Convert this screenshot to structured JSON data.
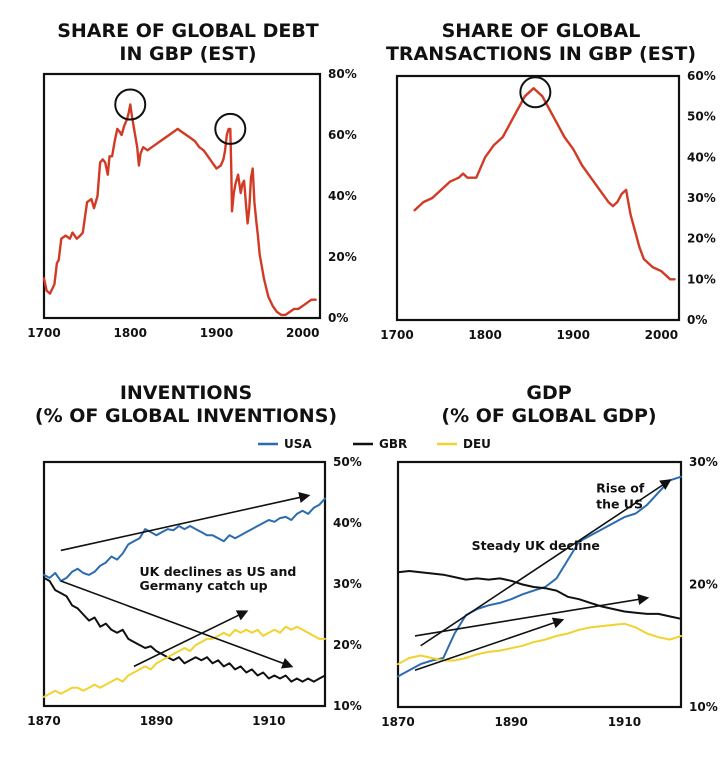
{
  "colors": {
    "red": "#d13b25",
    "usa": "#2b6cb0",
    "gbr": "#111111",
    "deu": "#f2d22e",
    "frame": "#111111"
  },
  "legend": [
    {
      "label": "USA",
      "color": "#2b6cb0"
    },
    {
      "label": "GBR",
      "color": "#111111"
    },
    {
      "label": "DEU",
      "color": "#f2d22e"
    }
  ],
  "chart_data": [
    {
      "id": "debt",
      "type": "line",
      "title": [
        "SHARE OF GLOBAL DEBT",
        "IN GBP (EST)"
      ],
      "xlim": [
        1700,
        2020
      ],
      "ylim": [
        0,
        80
      ],
      "x_ticks": [
        "1700",
        "1800",
        "1900",
        "2000"
      ],
      "x_tick_values": [
        1700,
        1800,
        1900,
        2000
      ],
      "y_ticks": [
        "0%",
        "20%",
        "40%",
        "60%",
        "80%"
      ],
      "y_tick_values": [
        0,
        20,
        40,
        60,
        80
      ],
      "y_axis_side": "right",
      "series": [
        {
          "name": "GBP share of global debt",
          "color": "#d13b25",
          "x": [
            1700,
            1703,
            1707,
            1712,
            1715,
            1717,
            1720,
            1725,
            1730,
            1733,
            1738,
            1742,
            1745,
            1750,
            1755,
            1758,
            1762,
            1765,
            1768,
            1771,
            1774,
            1776,
            1779,
            1782,
            1785,
            1788,
            1790,
            1793,
            1796,
            1798,
            1800,
            1802,
            1805,
            1808,
            1810,
            1812,
            1815,
            1820,
            1825,
            1830,
            1835,
            1840,
            1845,
            1850,
            1855,
            1860,
            1865,
            1870,
            1875,
            1880,
            1885,
            1890,
            1895,
            1900,
            1905,
            1908,
            1910,
            1912,
            1913,
            1914,
            1915,
            1916,
            1917,
            1918,
            1920,
            1922,
            1925,
            1928,
            1930,
            1932,
            1934,
            1936,
            1938,
            1940,
            1942,
            1944,
            1946,
            1948,
            1950,
            1955,
            1960,
            1965,
            1970,
            1975,
            1980,
            1985,
            1990,
            1995,
            2000,
            2005,
            2010,
            2015
          ],
          "y": [
            13,
            9,
            8,
            11,
            18,
            19,
            26,
            27,
            26,
            28,
            26,
            27,
            28,
            38,
            39,
            36,
            40,
            51,
            52,
            51,
            47,
            53,
            53,
            58,
            62,
            61,
            60,
            63,
            65,
            67,
            70,
            66,
            61,
            56,
            50,
            54,
            56,
            55,
            56,
            57,
            58,
            59,
            60,
            61,
            62,
            61,
            60,
            59,
            58,
            56,
            55,
            53,
            51,
            49,
            50,
            52,
            55,
            60,
            61,
            62,
            62,
            62,
            50,
            35,
            41,
            44,
            47,
            41,
            44,
            45,
            38,
            31,
            36,
            46,
            49,
            38,
            32,
            27,
            21,
            13,
            7,
            4,
            2,
            1,
            1,
            2,
            3,
            3,
            4,
            5,
            6,
            6
          ]
        },
        {
          "name": "peak-circle-1",
          "x": [
            1800
          ],
          "y": [
            70
          ]
        },
        {
          "name": "peak-circle-2",
          "x": [
            1916
          ],
          "y": [
            62
          ]
        }
      ]
    },
    {
      "id": "transactions",
      "type": "line",
      "title": [
        "SHARE OF GLOBAL",
        "TRANSACTIONS IN GBP (EST)"
      ],
      "xlim": [
        1700,
        2020
      ],
      "ylim": [
        0,
        60
      ],
      "x_ticks": [
        "1700",
        "1800",
        "1900",
        "2000"
      ],
      "x_tick_values": [
        1700,
        1800,
        1900,
        2000
      ],
      "y_ticks": [
        "0%",
        "10%",
        "20%",
        "30%",
        "40%",
        "50%",
        "60%"
      ],
      "y_tick_values": [
        0,
        10,
        20,
        30,
        40,
        50,
        60
      ],
      "y_axis_side": "right",
      "series": [
        {
          "name": "GBP share of global transactions",
          "color": "#d13b25",
          "x": [
            1720,
            1730,
            1740,
            1750,
            1760,
            1770,
            1775,
            1780,
            1790,
            1800,
            1810,
            1820,
            1830,
            1840,
            1845,
            1850,
            1855,
            1860,
            1865,
            1870,
            1880,
            1890,
            1900,
            1910,
            1920,
            1930,
            1940,
            1945,
            1950,
            1955,
            1960,
            1965,
            1970,
            1975,
            1980,
            1990,
            2000,
            2005,
            2010,
            2015
          ],
          "y": [
            27,
            29,
            30,
            32,
            34,
            35,
            36,
            35,
            35,
            40,
            43,
            45,
            49,
            53,
            55,
            56,
            57,
            56,
            55,
            53,
            49,
            45,
            42,
            38,
            35,
            32,
            29,
            28,
            29,
            31,
            32,
            26,
            22,
            18,
            15,
            13,
            12,
            11,
            10,
            10
          ]
        },
        {
          "name": "peak-circle",
          "x": [
            1857
          ],
          "y": [
            56
          ]
        }
      ]
    },
    {
      "id": "inventions",
      "type": "line",
      "title": [
        "INVENTIONS",
        "(% OF GLOBAL INVENTIONS)"
      ],
      "xlim": [
        1870,
        1920
      ],
      "ylim": [
        10,
        50
      ],
      "x_ticks": [
        "1870",
        "1890",
        "1910"
      ],
      "x_tick_values": [
        1870,
        1890,
        1910
      ],
      "y_ticks": [
        "10%",
        "20%",
        "30%",
        "40%",
        "50%"
      ],
      "y_tick_values": [
        10,
        20,
        30,
        40,
        50
      ],
      "y_axis_side": "right",
      "series": [
        {
          "name": "USA",
          "color": "#2b6cb0",
          "x": [
            1870,
            1871,
            1872,
            1873,
            1874,
            1875,
            1876,
            1877,
            1878,
            1879,
            1880,
            1881,
            1882,
            1883,
            1884,
            1885,
            1886,
            1887,
            1888,
            1889,
            1890,
            1891,
            1892,
            1893,
            1894,
            1895,
            1896,
            1897,
            1898,
            1899,
            1900,
            1901,
            1902,
            1903,
            1904,
            1905,
            1906,
            1907,
            1908,
            1909,
            1910,
            1911,
            1912,
            1913,
            1914,
            1915,
            1916,
            1917,
            1918,
            1919,
            1920
          ],
          "y": [
            31.5,
            31.0,
            31.8,
            30.5,
            31.0,
            32.0,
            32.5,
            31.8,
            31.5,
            32.0,
            33.0,
            33.5,
            34.5,
            34.0,
            35.0,
            36.5,
            37.0,
            37.5,
            39.0,
            38.5,
            38.0,
            38.5,
            39.0,
            38.8,
            39.5,
            39.0,
            39.5,
            39.0,
            38.5,
            38.0,
            38.0,
            37.5,
            37.0,
            38.0,
            37.5,
            38.0,
            38.5,
            39.0,
            39.5,
            40.0,
            40.5,
            40.2,
            40.8,
            41.0,
            40.5,
            41.5,
            42.0,
            41.5,
            42.5,
            43.0,
            44.0
          ]
        },
        {
          "name": "GBR",
          "color": "#111111",
          "x": [
            1870,
            1871,
            1872,
            1873,
            1874,
            1875,
            1876,
            1877,
            1878,
            1879,
            1880,
            1881,
            1882,
            1883,
            1884,
            1885,
            1886,
            1887,
            1888,
            1889,
            1890,
            1891,
            1892,
            1893,
            1894,
            1895,
            1896,
            1897,
            1898,
            1899,
            1900,
            1901,
            1902,
            1903,
            1904,
            1905,
            1906,
            1907,
            1908,
            1909,
            1910,
            1911,
            1912,
            1913,
            1914,
            1915,
            1916,
            1917,
            1918,
            1919,
            1920
          ],
          "y": [
            31.0,
            30.5,
            29.0,
            28.5,
            28.0,
            26.5,
            26.0,
            25.0,
            24.0,
            24.5,
            23.0,
            23.5,
            22.5,
            22.0,
            22.5,
            21.0,
            20.5,
            20.0,
            19.5,
            19.8,
            19.0,
            18.5,
            18.0,
            17.5,
            18.0,
            17.0,
            17.5,
            18.0,
            17.5,
            18.0,
            17.0,
            17.5,
            16.5,
            17.0,
            16.0,
            16.5,
            15.5,
            16.0,
            15.0,
            15.5,
            14.5,
            15.0,
            14.5,
            15.0,
            14.0,
            14.5,
            14.0,
            14.5,
            14.0,
            14.5,
            15.0
          ]
        },
        {
          "name": "DEU",
          "color": "#f2d22e",
          "x": [
            1870,
            1871,
            1872,
            1873,
            1874,
            1875,
            1876,
            1877,
            1878,
            1879,
            1880,
            1881,
            1882,
            1883,
            1884,
            1885,
            1886,
            1887,
            1888,
            1889,
            1890,
            1891,
            1892,
            1893,
            1894,
            1895,
            1896,
            1897,
            1898,
            1899,
            1900,
            1901,
            1902,
            1903,
            1904,
            1905,
            1906,
            1907,
            1908,
            1909,
            1910,
            1911,
            1912,
            1913,
            1914,
            1915,
            1916,
            1917,
            1918,
            1919,
            1920
          ],
          "y": [
            11.5,
            12.0,
            12.5,
            12.0,
            12.5,
            13.0,
            13.0,
            12.5,
            13.0,
            13.5,
            13.0,
            13.5,
            14.0,
            14.5,
            14.0,
            15.0,
            15.5,
            16.0,
            16.5,
            16.0,
            17.0,
            17.5,
            18.0,
            18.5,
            19.0,
            19.5,
            19.0,
            20.0,
            20.5,
            21.0,
            21.0,
            21.5,
            22.0,
            21.5,
            22.5,
            22.0,
            22.5,
            22.0,
            22.5,
            21.5,
            22.0,
            22.5,
            22.0,
            23.0,
            22.5,
            23.0,
            22.5,
            22.0,
            21.5,
            21.0,
            21.0
          ]
        }
      ],
      "arrows": [
        {
          "x1": 1873,
          "y1": 35.5,
          "x2": 1917,
          "y2": 44.5
        },
        {
          "x1": 1873,
          "y1": 30.5,
          "x2": 1914,
          "y2": 16.5
        },
        {
          "x1": 1886,
          "y1": 16.5,
          "x2": 1906,
          "y2": 25.5
        }
      ],
      "annotations": [
        {
          "text": "UK declines as US and",
          "x": 1887,
          "y": 31.3
        },
        {
          "text": "Germany catch up",
          "x": 1887,
          "y": 29.0
        }
      ]
    },
    {
      "id": "gdp",
      "type": "line",
      "title": [
        "GDP",
        "(% OF GLOBAL GDP)"
      ],
      "xlim": [
        1870,
        1920
      ],
      "ylim": [
        10,
        30
      ],
      "x_ticks": [
        "1870",
        "1890",
        "1910"
      ],
      "x_tick_values": [
        1870,
        1890,
        1910
      ],
      "y_ticks": [
        "10%",
        "20%",
        "30%"
      ],
      "y_tick_values": [
        10,
        20,
        30
      ],
      "y_axis_side": "right",
      "series": [
        {
          "name": "USA",
          "color": "#2b6cb0",
          "x": [
            1870,
            1872,
            1874,
            1876,
            1878,
            1880,
            1882,
            1884,
            1886,
            1888,
            1890,
            1892,
            1894,
            1896,
            1898,
            1900,
            1902,
            1904,
            1906,
            1908,
            1910,
            1912,
            1914,
            1916,
            1918,
            1920
          ],
          "y": [
            12.5,
            13.0,
            13.5,
            13.8,
            14.0,
            16.0,
            17.5,
            18.0,
            18.3,
            18.5,
            18.8,
            19.2,
            19.5,
            19.8,
            20.5,
            22.0,
            23.5,
            24.0,
            24.5,
            25.0,
            25.5,
            25.8,
            26.5,
            27.5,
            28.5,
            28.8
          ]
        },
        {
          "name": "GBR",
          "color": "#111111",
          "x": [
            1870,
            1872,
            1874,
            1876,
            1878,
            1880,
            1882,
            1884,
            1886,
            1888,
            1890,
            1892,
            1894,
            1896,
            1898,
            1900,
            1902,
            1904,
            1906,
            1908,
            1910,
            1912,
            1914,
            1916,
            1918,
            1920
          ],
          "y": [
            21.0,
            21.1,
            21.0,
            20.9,
            20.8,
            20.6,
            20.4,
            20.5,
            20.4,
            20.5,
            20.3,
            20.0,
            19.8,
            19.7,
            19.5,
            19.0,
            18.8,
            18.5,
            18.2,
            18.0,
            17.8,
            17.7,
            17.6,
            17.6,
            17.4,
            17.2
          ]
        },
        {
          "name": "DEU",
          "color": "#f2d22e",
          "x": [
            1870,
            1872,
            1874,
            1876,
            1878,
            1880,
            1882,
            1884,
            1886,
            1888,
            1890,
            1892,
            1894,
            1896,
            1898,
            1900,
            1902,
            1904,
            1906,
            1908,
            1910,
            1912,
            1914,
            1916,
            1918,
            1920
          ],
          "y": [
            13.5,
            14.0,
            14.2,
            14.0,
            13.8,
            13.8,
            14.0,
            14.3,
            14.5,
            14.6,
            14.8,
            15.0,
            15.3,
            15.5,
            15.8,
            16.0,
            16.3,
            16.5,
            16.6,
            16.7,
            16.8,
            16.5,
            16.0,
            15.7,
            15.5,
            15.8
          ]
        }
      ],
      "arrows": [
        {
          "x1": 1873,
          "y1": 15.8,
          "x2": 1914,
          "y2": 18.9
        },
        {
          "x1": 1873,
          "y1": 13.0,
          "x2": 1899,
          "y2": 17.1
        },
        {
          "x1": 1874,
          "y1": 15.0,
          "x2": 1918,
          "y2": 28.5
        }
      ],
      "annotations": [
        {
          "text": "Steady UK decline",
          "x": 1883,
          "y": 22.8
        },
        {
          "text": "Rise of",
          "x": 1905,
          "y": 27.5
        },
        {
          "text": "the US",
          "x": 1905,
          "y": 26.2
        }
      ]
    }
  ]
}
